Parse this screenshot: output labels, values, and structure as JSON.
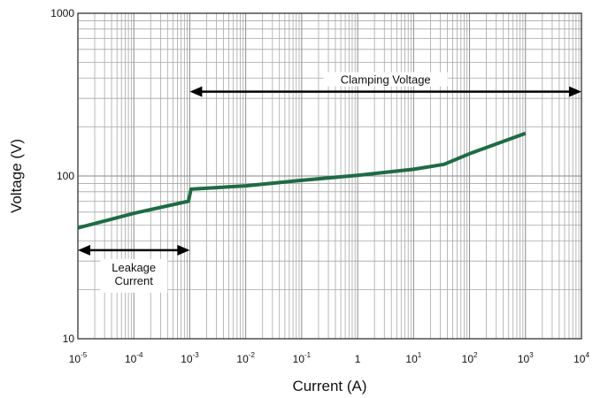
{
  "chart_data": {
    "type": "line",
    "title": "",
    "xlabel": "Current (A)",
    "ylabel": "Voltage (V)",
    "xscale": "log",
    "yscale": "log",
    "xlim": [
      1e-05,
      10000
    ],
    "ylim": [
      10,
      1000
    ],
    "grid": true,
    "x_ticks": [
      {
        "value": 1e-05,
        "base": "10",
        "exp": "-5"
      },
      {
        "value": 0.0001,
        "base": "10",
        "exp": "-4"
      },
      {
        "value": 0.001,
        "base": "10",
        "exp": "-3"
      },
      {
        "value": 0.01,
        "base": "10",
        "exp": "-2"
      },
      {
        "value": 0.1,
        "base": "10",
        "exp": "-1"
      },
      {
        "value": 1,
        "base": "1",
        "exp": ""
      },
      {
        "value": 10,
        "base": "10",
        "exp": "1"
      },
      {
        "value": 100,
        "base": "10",
        "exp": "2"
      },
      {
        "value": 1000,
        "base": "10",
        "exp": "3"
      },
      {
        "value": 10000,
        "base": "10",
        "exp": "4"
      }
    ],
    "y_ticks": [
      {
        "value": 10,
        "label": "10"
      },
      {
        "value": 100,
        "label": "100"
      },
      {
        "value": 1000,
        "label": "1000"
      }
    ],
    "series": [
      {
        "color": "#1e6b45",
        "points": [
          {
            "x": 1e-05,
            "y": 48
          },
          {
            "x": 0.0001,
            "y": 59
          },
          {
            "x": 0.00095,
            "y": 70
          },
          {
            "x": 0.00105,
            "y": 83
          },
          {
            "x": 0.01,
            "y": 87
          },
          {
            "x": 0.1,
            "y": 94
          },
          {
            "x": 1,
            "y": 101
          },
          {
            "x": 10,
            "y": 110
          },
          {
            "x": 35,
            "y": 118
          },
          {
            "x": 100,
            "y": 137
          },
          {
            "x": 1000,
            "y": 183
          }
        ]
      }
    ],
    "annotations": [
      {
        "id": "clamping",
        "text": "Clamping Voltage",
        "x_from": 0.001,
        "x_to": 10000,
        "y": 330
      },
      {
        "id": "leakage",
        "lines": [
          "Leakage",
          "Current"
        ],
        "x_from": 1e-05,
        "x_to": 0.001,
        "y": 35
      }
    ]
  }
}
